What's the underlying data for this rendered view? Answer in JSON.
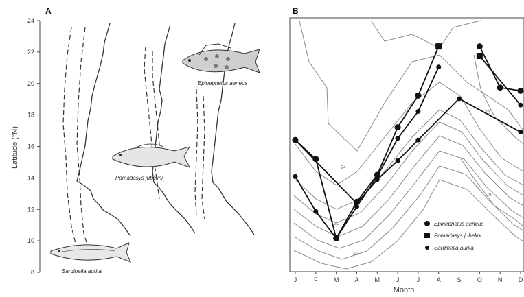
{
  "panel_a": {
    "label": "A"
  },
  "panel_b": {
    "label": "B"
  },
  "species_labels": [
    "Sardinella aurita",
    "Pomadasys jubelini",
    "Epinephelus aeneus"
  ],
  "chart_data": [
    {
      "type": "line",
      "panel": "A",
      "ylabel": "Latitude (°N)",
      "xlabel": "",
      "ylim": [
        8,
        24
      ],
      "yticks": [
        8,
        10,
        12,
        14,
        16,
        18,
        20,
        22,
        24
      ],
      "grid": false
    },
    {
      "type": "line",
      "panel": "B",
      "xlabel": "Month",
      "ylabel": "",
      "categories": [
        "J",
        "F",
        "M",
        "A",
        "M",
        "J",
        "J",
        "A",
        "S",
        "O",
        "N",
        "D"
      ],
      "ylim": [
        8,
        24
      ],
      "grid": false,
      "legend": {
        "placement": "bottom-right",
        "entries": [
          {
            "label": "Epinephelus aeneus",
            "marker": "circle"
          },
          {
            "label": "Pomadasys jubelini",
            "marker": "square"
          },
          {
            "label": "Sardinella aurita",
            "marker": "dot"
          }
        ]
      },
      "isotherm_labels": [
        "20",
        "22",
        "24",
        "26",
        "28"
      ],
      "series": [
        {
          "marker": "circle",
          "segments": [
            [
              [
                0,
                16.3
              ],
              [
                1,
                15.1
              ],
              [
                2,
                10.1
              ],
              [
                3,
                12.4
              ],
              [
                4,
                14.1
              ],
              [
                5,
                17.1
              ],
              [
                6,
                19.1
              ],
              [
                7,
                22.2
              ]
            ],
            [
              [
                9,
                22.2
              ],
              [
                10,
                19.6
              ],
              [
                11,
                19.4
              ]
            ]
          ]
        },
        {
          "marker": "square",
          "segments": [
            [
              [
                7,
                22.2
              ]
            ],
            [
              [
                9,
                21.6
              ]
            ]
          ]
        },
        {
          "marker": "dot",
          "segments": [
            [
              [
                0,
                14.0
              ],
              [
                1,
                11.8
              ],
              [
                2,
                10.1
              ],
              [
                3,
                12.1
              ],
              [
                4,
                14.0
              ],
              [
                5,
                16.4
              ],
              [
                6,
                18.1
              ],
              [
                7,
                20.9
              ]
            ],
            [
              [
                0,
                16.3
              ],
              [
                3,
                12.3
              ],
              [
                4,
                13.8
              ],
              [
                5,
                15.0
              ],
              [
                6,
                16.3
              ],
              [
                8,
                18.9
              ],
              [
                11,
                16.8
              ]
            ],
            [
              [
                9,
                21.6
              ],
              [
                11,
                18.5
              ]
            ]
          ]
        }
      ]
    }
  ]
}
